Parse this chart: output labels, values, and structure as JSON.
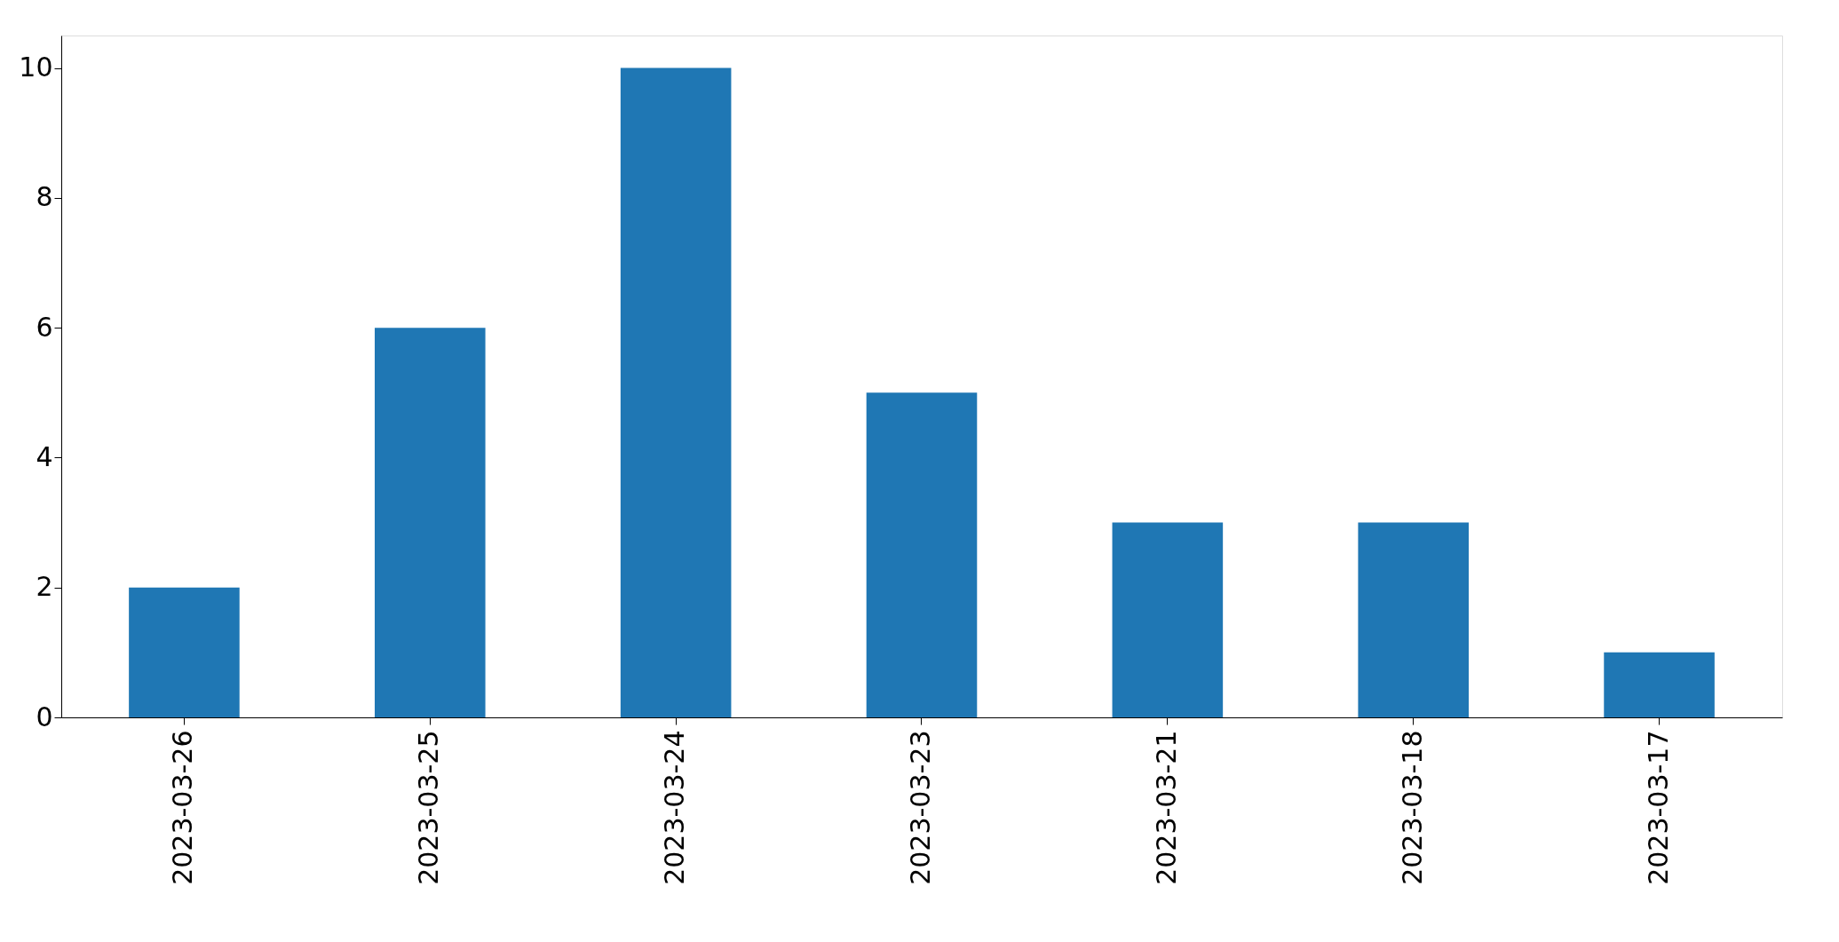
{
  "chart_data": {
    "type": "bar",
    "categories": [
      "2023-03-26",
      "2023-03-25",
      "2023-03-24",
      "2023-03-23",
      "2023-03-21",
      "2023-03-18",
      "2023-03-17"
    ],
    "values": [
      2,
      6,
      10,
      5,
      3,
      3,
      1
    ],
    "color": "#1f77b4",
    "ylim": [
      0,
      10.5
    ],
    "yticks": [
      0,
      2,
      4,
      6,
      8,
      10
    ],
    "grid": false
  }
}
